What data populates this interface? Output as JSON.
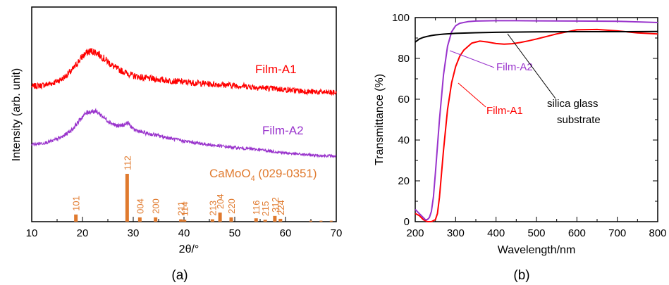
{
  "chart_data": [
    {
      "type": "line",
      "panel_label": "(a)",
      "xlabel": "2θ/°",
      "ylabel": "Intensity (arb. unit)",
      "xlim": [
        10,
        70
      ],
      "xticks": [
        10,
        20,
        30,
        40,
        50,
        60,
        70
      ],
      "yticks": "none",
      "grid": false,
      "series": [
        {
          "name": "Film-A1",
          "color": "#ff0000",
          "x": [
            10,
            12,
            14,
            16,
            18,
            19,
            20,
            21,
            22,
            23,
            24,
            25,
            26,
            27,
            28,
            29,
            30,
            32,
            34,
            36,
            38,
            40,
            43,
            46,
            50,
            55,
            60,
            65,
            70
          ],
          "y": [
            0.63,
            0.635,
            0.645,
            0.665,
            0.705,
            0.74,
            0.77,
            0.79,
            0.795,
            0.785,
            0.765,
            0.745,
            0.725,
            0.71,
            0.7,
            0.69,
            0.68,
            0.67,
            0.665,
            0.66,
            0.655,
            0.65,
            0.645,
            0.64,
            0.635,
            0.625,
            0.615,
            0.605,
            0.6
          ]
        },
        {
          "name": "Film-A2",
          "color": "#9933cc",
          "x": [
            10,
            12,
            14,
            16,
            18,
            19,
            20,
            21,
            22,
            23,
            24,
            25,
            26,
            27,
            28,
            29,
            30,
            32,
            34,
            36,
            38,
            40,
            43,
            46,
            50,
            55,
            60,
            65,
            70
          ],
          "y": [
            0.36,
            0.365,
            0.375,
            0.395,
            0.43,
            0.46,
            0.49,
            0.51,
            0.515,
            0.51,
            0.49,
            0.47,
            0.455,
            0.445,
            0.45,
            0.46,
            0.43,
            0.415,
            0.405,
            0.395,
            0.385,
            0.375,
            0.365,
            0.355,
            0.345,
            0.335,
            0.32,
            0.31,
            0.305
          ]
        }
      ],
      "reference": {
        "name": "CaMoO4 (029-0351)",
        "name_main": "CaMoO",
        "name_sub": "4",
        "name_rest": " (029-0351)",
        "color": "#e07a2e",
        "peaks": [
          {
            "hkl": "101",
            "x": 18.7,
            "h": 15
          },
          {
            "hkl": "112",
            "x": 28.8,
            "h": 100
          },
          {
            "hkl": "004",
            "x": 31.3,
            "h": 9
          },
          {
            "hkl": "200",
            "x": 34.4,
            "h": 9
          },
          {
            "hkl": "211",
            "x": 39.4,
            "h": 5
          },
          {
            "hkl": "114",
            "x": 40.1,
            "h": 4
          },
          {
            "hkl": "213",
            "x": 45.6,
            "h": 5
          },
          {
            "hkl": "204",
            "x": 47.1,
            "h": 19
          },
          {
            "hkl": "220",
            "x": 49.3,
            "h": 9
          },
          {
            "hkl": "116",
            "x": 54.2,
            "h": 7
          },
          {
            "hkl": "215",
            "x": 56.0,
            "h": 4
          },
          {
            "hkl": "312",
            "x": 57.9,
            "h": 12
          },
          {
            "hkl": "224",
            "x": 59.0,
            "h": 6
          }
        ],
        "minor_peaks": [
          {
            "x": 65.0,
            "h": 2
          },
          {
            "x": 67.0,
            "h": 2
          },
          {
            "x": 69.0,
            "h": 2
          }
        ]
      }
    },
    {
      "type": "line",
      "panel_label": "(b)",
      "xlabel": "Wavelength/nm",
      "ylabel": "Transmittance (%)",
      "xlim": [
        200,
        800
      ],
      "ylim": [
        0,
        100
      ],
      "xticks": [
        200,
        300,
        400,
        500,
        600,
        700,
        800
      ],
      "yticks": [
        0,
        20,
        40,
        60,
        80,
        100
      ],
      "grid": false,
      "series": [
        {
          "name": "Film-A1",
          "color": "#ff0000",
          "x": [
            200,
            210,
            220,
            230,
            240,
            250,
            255,
            260,
            270,
            280,
            290,
            300,
            310,
            320,
            340,
            360,
            380,
            400,
            420,
            440,
            460,
            480,
            500,
            520,
            550,
            600,
            650,
            700,
            750,
            800
          ],
          "y": [
            4,
            3,
            1,
            0,
            0,
            1,
            4,
            12,
            35,
            55,
            68,
            76,
            81,
            84,
            87.5,
            88.5,
            88,
            87.3,
            87,
            87.2,
            87.8,
            88.6,
            89.5,
            90.5,
            92,
            94,
            94.2,
            93.5,
            92.5,
            92
          ]
        },
        {
          "name": "Film-A2",
          "color": "#9933cc",
          "x": [
            200,
            210,
            220,
            225,
            230,
            235,
            240,
            245,
            250,
            260,
            270,
            280,
            290,
            300,
            310,
            330,
            350,
            400,
            450,
            500,
            600,
            700,
            800
          ],
          "y": [
            6,
            4,
            2,
            1,
            1,
            2,
            5,
            12,
            24,
            50,
            72,
            86,
            93,
            96,
            97.2,
            98,
            98.3,
            98.5,
            98.5,
            98.4,
            98.3,
            98.2,
            97.6
          ]
        },
        {
          "name": "silica glass substrate",
          "color": "#000000",
          "x": [
            200,
            210,
            220,
            230,
            240,
            250,
            270,
            300,
            350,
            400,
            500,
            600,
            700,
            800
          ],
          "y": [
            88,
            89.5,
            90.3,
            90.8,
            91.2,
            91.5,
            91.9,
            92.3,
            92.6,
            92.8,
            93,
            93.1,
            93.1,
            93.2
          ]
        }
      ],
      "annotations": [
        {
          "text": "Film-A2",
          "color": "#9933cc",
          "target": [
            275,
            86
          ]
        },
        {
          "text": "Film-A1",
          "color": "#ff0000",
          "target": [
            305,
            64
          ]
        },
        {
          "text_lines": [
            "silica glass",
            "substrate"
          ],
          "color": "#000000",
          "target": [
            420,
            92.7
          ]
        }
      ]
    }
  ]
}
